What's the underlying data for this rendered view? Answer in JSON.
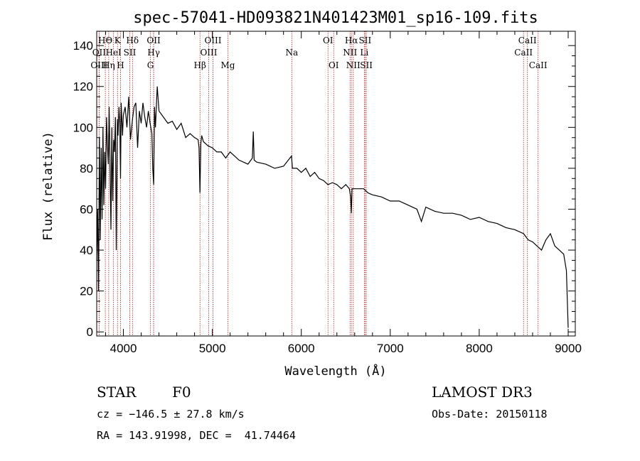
{
  "chart_data": {
    "type": "line",
    "title": "spec-57041-HD093821N401423M01_sp16-109.fits",
    "xlabel": "Wavelength (Å)",
    "ylabel": "Flux (relative)",
    "xlim": [
      3700,
      9080
    ],
    "ylim": [
      -2,
      147
    ],
    "xticks": [
      4000,
      5000,
      6000,
      7000,
      8000,
      9000
    ],
    "xtick_labels": [
      "4000",
      "5000",
      "6000",
      "7000",
      "8000",
      "9000"
    ],
    "yticks": [
      0,
      20,
      40,
      60,
      80,
      100,
      120,
      140
    ],
    "ytick_labels": [
      "0",
      "20",
      "40",
      "60",
      "80",
      "100",
      "120",
      "140"
    ],
    "grid": false,
    "series": [
      {
        "name": "flux",
        "x": [
          3700,
          3710,
          3720,
          3730,
          3740,
          3750,
          3760,
          3770,
          3780,
          3790,
          3800,
          3810,
          3820,
          3830,
          3840,
          3850,
          3860,
          3870,
          3880,
          3890,
          3900,
          3910,
          3920,
          3933,
          3940,
          3950,
          3960,
          3968,
          3975,
          3990,
          4000,
          4020,
          4040,
          4060,
          4080,
          4102,
          4120,
          4140,
          4160,
          4180,
          4200,
          4220,
          4240,
          4260,
          4280,
          4300,
          4320,
          4330,
          4340,
          4350,
          4360,
          4380,
          4400,
          4450,
          4500,
          4550,
          4600,
          4650,
          4700,
          4750,
          4800,
          4840,
          4850,
          4861,
          4870,
          4880,
          4900,
          4950,
          5000,
          5050,
          5100,
          5150,
          5200,
          5300,
          5400,
          5450,
          5460,
          5470,
          5500,
          5600,
          5700,
          5800,
          5890,
          5900,
          5950,
          6000,
          6050,
          6100,
          6150,
          6200,
          6250,
          6300,
          6350,
          6400,
          6450,
          6500,
          6540,
          6555,
          6563,
          6570,
          6590,
          6650,
          6700,
          6750,
          6800,
          6900,
          7000,
          7100,
          7200,
          7300,
          7350,
          7400,
          7500,
          7600,
          7700,
          7800,
          7900,
          8000,
          8100,
          8200,
          8300,
          8400,
          8500,
          8550,
          8600,
          8650,
          8700,
          8750,
          8800,
          8850,
          8900,
          8950,
          8980,
          9000
        ],
        "y": [
          35,
          60,
          20,
          95,
          45,
          90,
          55,
          100,
          62,
          88,
          70,
          105,
          92,
          82,
          110,
          80,
          50,
          100,
          64,
          94,
          88,
          105,
          40,
          104,
          96,
          110,
          102,
          75,
          112,
          96,
          106,
          110,
          100,
          115,
          94,
          104,
          110,
          112,
          90,
          108,
          102,
          112,
          105,
          100,
          108,
          102,
          97,
          80,
          72,
          110,
          100,
          120,
          108,
          105,
          102,
          103,
          99,
          102,
          95,
          97,
          95,
          94,
          90,
          68,
          92,
          96,
          93,
          91,
          90,
          88,
          88,
          85,
          88,
          84,
          82,
          85,
          98,
          84,
          83,
          82,
          80,
          81,
          86,
          80,
          80,
          78,
          80,
          76,
          78,
          75,
          74,
          72,
          73,
          72,
          70,
          72,
          70,
          66,
          58,
          70,
          70,
          70,
          70,
          68,
          67,
          66,
          64,
          64,
          62,
          60,
          54,
          61,
          59,
          58,
          58,
          57,
          55,
          56,
          54,
          53,
          51,
          50,
          48,
          45,
          44,
          42,
          40,
          45,
          48,
          42,
          40,
          38,
          30,
          2
        ]
      }
    ],
    "emission_lines": [
      {
        "label": "HΘ",
        "wavelength": 3797,
        "row": 1
      },
      {
        "label": "OII",
        "wavelength": 3727,
        "row": 2
      },
      {
        "label": "OIII",
        "wavelength": 3727,
        "row": 3
      },
      {
        "label": "K",
        "wavelength": 3934,
        "row": 1
      },
      {
        "label": "HeI",
        "wavelength": 3889,
        "row": 2
      },
      {
        "label": "Hη",
        "wavelength": 3835,
        "row": 3
      },
      {
        "label": "H",
        "wavelength": 3968,
        "row": 3
      },
      {
        "label": "Hδ",
        "wavelength": 4102,
        "row": 1
      },
      {
        "label": "SII",
        "wavelength": 4072,
        "row": 2
      },
      {
        "label": "OII",
        "wavelength": 4340,
        "row": 1
      },
      {
        "label": "Hγ",
        "wavelength": 4340,
        "row": 2
      },
      {
        "label": "G",
        "wavelength": 4304,
        "row": 3
      },
      {
        "label": "Hβ",
        "wavelength": 4861,
        "row": 3
      },
      {
        "label": "OIII",
        "wavelength": 5007,
        "row": 1
      },
      {
        "label": "OIII",
        "wavelength": 4959,
        "row": 2
      },
      {
        "label": "Mg",
        "wavelength": 5175,
        "row": 3
      },
      {
        "label": "Na",
        "wavelength": 5893,
        "row": 2
      },
      {
        "label": "OI",
        "wavelength": 6300,
        "row": 1
      },
      {
        "label": "OI",
        "wavelength": 6364,
        "row": 3
      },
      {
        "label": "Hα",
        "wavelength": 6563,
        "row": 1
      },
      {
        "label": "SII",
        "wavelength": 6717,
        "row": 1
      },
      {
        "label": "NII",
        "wavelength": 6548,
        "row": 2
      },
      {
        "label": "Li",
        "wavelength": 6708,
        "row": 2
      },
      {
        "label": "NII",
        "wavelength": 6584,
        "row": 3
      },
      {
        "label": "SII",
        "wavelength": 6731,
        "row": 3
      },
      {
        "label": "CaII",
        "wavelength": 8542,
        "row": 1
      },
      {
        "label": "CaII",
        "wavelength": 8498,
        "row": 2
      },
      {
        "label": "CaII",
        "wavelength": 8662,
        "row": 3
      }
    ]
  },
  "info": {
    "class": "STAR",
    "subclass": "F0",
    "survey": "LAMOST DR3",
    "cz": "cz = −146.5 ± 27.8 km/s",
    "obs_date": "Obs-Date: 20150118",
    "coords": "RA = 143.91998, DEC =  41.74464"
  },
  "colors": {
    "line": "#000000",
    "marker": "#b22222"
  }
}
